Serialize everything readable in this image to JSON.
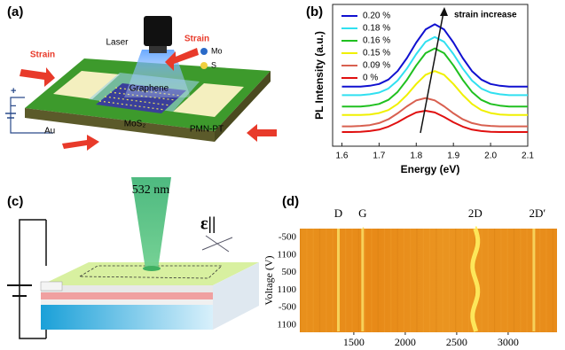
{
  "panels": {
    "a": {
      "label": "(a)",
      "laser": "Laser",
      "strain_left": "Strain",
      "strain_right": "Strain",
      "mo": "Mo",
      "s": "S",
      "graphene": "Graphene",
      "mos2": "MoS₂",
      "substrate": "PMN-PT",
      "electrode": "Au",
      "plus": "+",
      "minus": "−"
    },
    "b": {
      "label": "(b)"
    },
    "c": {
      "label": "(c)",
      "wavelength": "532 nm",
      "polarization": "ε||"
    },
    "d": {
      "label": "(d)"
    }
  },
  "chart_data": [
    {
      "type": "line",
      "xlabel": "Energy (eV)",
      "ylabel": "PL Intensity (a.u.)",
      "annotation": "strain increase",
      "legend": "upper left",
      "xlim": [
        1.575,
        2.1
      ],
      "ylim": [
        0,
        10
      ],
      "xticks": [
        1.6,
        1.7,
        1.8,
        1.9,
        {
          "value": 2,
          "label": "2.0"
        },
        2.1
      ],
      "x": [
        1.6,
        1.625,
        1.65,
        1.675,
        1.7,
        1.725,
        1.75,
        1.775,
        1.8,
        1.825,
        1.85,
        1.875,
        1.9,
        1.925,
        1.95,
        1.975,
        2.0,
        2.025,
        2.05,
        2.075,
        2.1
      ],
      "series": [
        {
          "name": "0.20 %",
          "color": "#1010d0",
          "values": [
            4.2,
            4.2,
            4.2,
            4.26,
            4.39,
            4.7,
            5.3,
            6.22,
            7.31,
            8.23,
            8.6,
            8.23,
            7.31,
            6.22,
            5.3,
            4.7,
            4.39,
            4.26,
            4.2,
            4.2,
            4.2
          ]
        },
        {
          "name": "0.18 %",
          "color": "#30e0f0",
          "values": [
            3.6,
            3.6,
            3.6,
            3.66,
            3.78,
            4.07,
            4.63,
            5.48,
            6.5,
            7.36,
            7.7,
            7.36,
            6.5,
            5.48,
            4.63,
            4.07,
            3.78,
            3.66,
            3.6,
            3.6,
            3.6
          ]
        },
        {
          "name": "0.16 %",
          "color": "#20c020",
          "values": [
            2.8,
            2.8,
            2.8,
            2.86,
            2.98,
            3.27,
            3.83,
            4.68,
            5.7,
            6.56,
            6.9,
            6.56,
            5.7,
            4.68,
            3.83,
            3.27,
            2.98,
            2.86,
            2.8,
            2.8,
            2.8
          ]
        },
        {
          "name": "0.15 %",
          "color": "#f0f000",
          "values": [
            2.2,
            2.2,
            2.2,
            2.24,
            2.34,
            2.55,
            2.98,
            3.62,
            4.39,
            5.04,
            5.3,
            5.04,
            4.39,
            3.62,
            2.98,
            2.55,
            2.34,
            2.24,
            2.2,
            2.2,
            2.2
          ]
        },
        {
          "name": "0.09 %",
          "color": "#d86050",
          "values": [
            1.4,
            1.4,
            1.43,
            1.49,
            1.63,
            1.9,
            2.32,
            2.81,
            3.23,
            3.4,
            3.23,
            2.81,
            2.32,
            1.9,
            1.63,
            1.49,
            1.43,
            1.4,
            1.4,
            1.4,
            1.4
          ]
        },
        {
          "name": "0 %",
          "color": "#e01010",
          "values": [
            1.0,
            1.0,
            1.02,
            1.07,
            1.17,
            1.38,
            1.69,
            2.06,
            2.38,
            2.5,
            2.38,
            2.06,
            1.69,
            1.38,
            1.17,
            1.07,
            1.02,
            1.0,
            1.0,
            1.0,
            1.0
          ]
        }
      ]
    },
    {
      "type": "heatmap",
      "ylabel": "Voltage (V)",
      "xlim": [
        975,
        3475
      ],
      "xticks": [
        1500,
        2000,
        2500,
        3000
      ],
      "y_labels": [
        "-500",
        "1100",
        "500",
        "1100",
        "-500",
        "1100"
      ],
      "peaks": [
        {
          "label": "D",
          "x": 1350
        },
        {
          "label": "G",
          "x": 1585
        },
        {
          "label": "2D",
          "x": 2680
        },
        {
          "label": "2D′",
          "x": 3250
        }
      ]
    }
  ]
}
